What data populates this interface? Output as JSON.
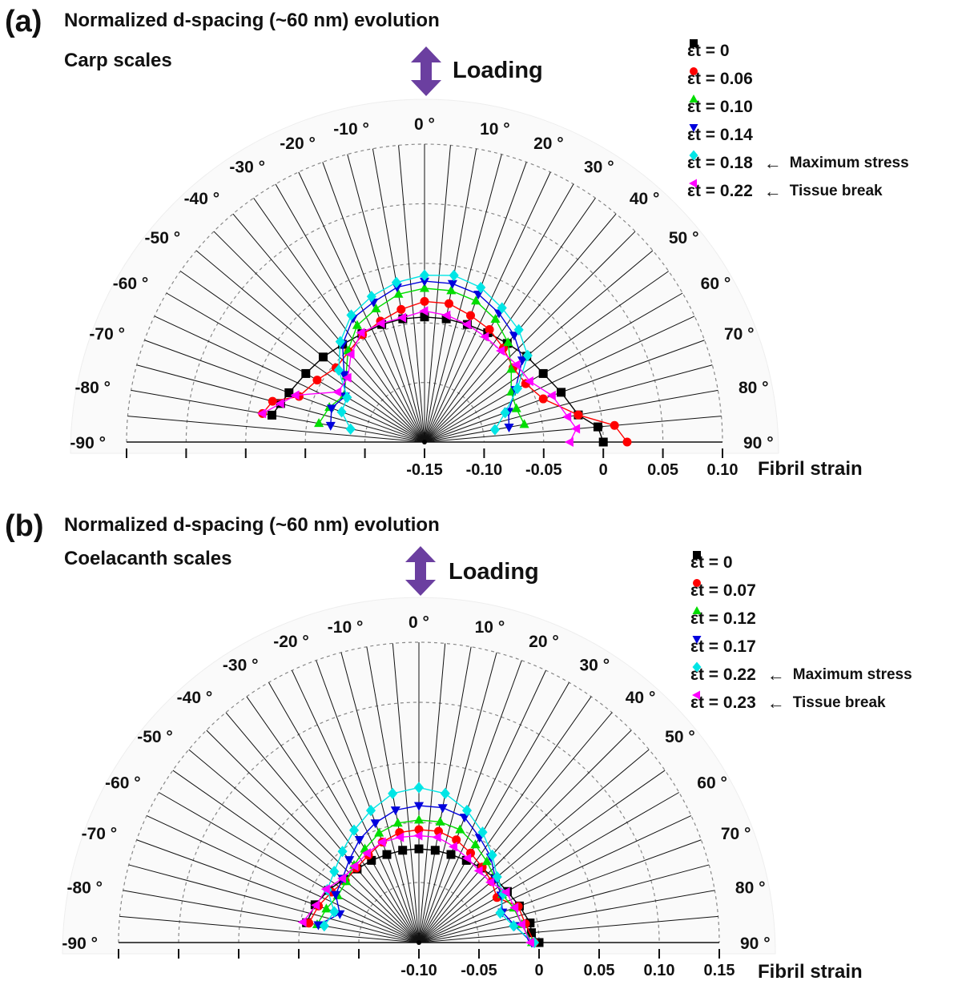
{
  "chart_data": [
    {
      "panel_label": "(a)",
      "type": "scatter",
      "title": "Normalized d-spacing (~60 nm) evolution",
      "subtitle": "Carp scales",
      "loading_label": "Loading",
      "xlabel": "Fibril strain",
      "radial_range": [
        -0.15,
        0.1
      ],
      "tick_values": [
        -0.15,
        -0.1,
        -0.05,
        0,
        0.05,
        0.1
      ],
      "tick_labels": [
        "-0.15",
        "-0.10",
        "-0.05",
        "0",
        "0.05",
        "0.10"
      ],
      "angles": [
        -90,
        -80,
        -70,
        -60,
        -50,
        -40,
        -30,
        -20,
        -10,
        0,
        10,
        20,
        30,
        40,
        50,
        60,
        70,
        80,
        90
      ],
      "angle_labels": [
        "-90 °",
        "-80 °",
        "-70 °",
        "-60 °",
        "-50 °",
        "-40 °",
        "-30 °",
        "-20 °",
        "-10 °",
        "0 °",
        "10 °",
        "20 °",
        "30 °",
        "40 °",
        "50 °",
        "60 °",
        "70 °",
        "80 °",
        "90 °"
      ],
      "legend_position": "top-right",
      "grid": true,
      "series": [
        {
          "name": "εt = 0",
          "color": "#000000",
          "marker": "square",
          "points": [
            [
              -80,
              -0.02
            ],
            [
              -75,
              -0.025
            ],
            [
              -70,
              -0.029
            ],
            [
              -60,
              -0.035
            ],
            [
              -50,
              -0.039
            ],
            [
              -40,
              -0.043
            ],
            [
              -30,
              -0.045
            ],
            [
              -20,
              -0.045
            ],
            [
              -10,
              -0.045
            ],
            [
              0,
              -0.045
            ],
            [
              10,
              -0.045
            ],
            [
              20,
              -0.045
            ],
            [
              30,
              -0.044
            ],
            [
              40,
              -0.042
            ],
            [
              50,
              -0.038
            ],
            [
              60,
              -0.035
            ],
            [
              70,
              -0.028
            ],
            [
              80,
              -0.019
            ],
            [
              85,
              -0.004
            ],
            [
              90,
              0.0
            ]
          ]
        },
        {
          "name": "εt = 0.06",
          "color": "#ff0000",
          "marker": "circle",
          "points": [
            [
              -80,
              -0.012
            ],
            [
              -75,
              -0.018
            ],
            [
              -70,
              -0.038
            ],
            [
              -60,
              -0.046
            ],
            [
              -50,
              -0.053
            ],
            [
              -40,
              -0.051
            ],
            [
              -30,
              -0.046
            ],
            [
              -20,
              -0.042
            ],
            [
              -10,
              -0.037
            ],
            [
              0,
              -0.032
            ],
            [
              10,
              -0.032
            ],
            [
              20,
              -0.037
            ],
            [
              30,
              -0.041
            ],
            [
              40,
              -0.047
            ],
            [
              50,
              -0.053
            ],
            [
              60,
              -0.052
            ],
            [
              70,
              -0.044
            ],
            [
              80,
              -0.019
            ],
            [
              85,
              0.01
            ],
            [
              90,
              0.02
            ]
          ]
        },
        {
          "name": "εt = 0.10",
          "color": "#00dd00",
          "marker": "triangle-up",
          "points": [
            [
              -80,
              -0.06
            ],
            [
              -70,
              -0.065
            ],
            [
              -60,
              -0.072
            ],
            [
              -50,
              -0.064
            ],
            [
              -40,
              -0.05
            ],
            [
              -30,
              -0.037
            ],
            [
              -20,
              -0.031
            ],
            [
              -10,
              -0.024
            ],
            [
              0,
              -0.021
            ],
            [
              10,
              -0.021
            ],
            [
              20,
              -0.024
            ],
            [
              30,
              -0.031
            ],
            [
              40,
              -0.041
            ],
            [
              50,
              -0.055
            ],
            [
              60,
              -0.066
            ],
            [
              70,
              -0.068
            ],
            [
              80,
              -0.065
            ]
          ]
        },
        {
          "name": "εt = 0.14",
          "color": "#0000dd",
          "marker": "triangle-down",
          "points": [
            [
              -80,
              -0.07
            ],
            [
              -70,
              -0.067
            ],
            [
              -60,
              -0.073
            ],
            [
              -50,
              -0.062
            ],
            [
              -40,
              -0.043
            ],
            [
              -30,
              -0.03
            ],
            [
              -20,
              -0.025
            ],
            [
              -10,
              -0.018
            ],
            [
              0,
              -0.015
            ],
            [
              10,
              -0.015
            ],
            [
              20,
              -0.018
            ],
            [
              30,
              -0.025
            ],
            [
              40,
              -0.033
            ],
            [
              50,
              -0.043
            ],
            [
              60,
              -0.062
            ],
            [
              70,
              -0.075
            ],
            [
              80,
              -0.078
            ]
          ]
        },
        {
          "name": "εt = 0.18",
          "color": "#00e5e5",
          "marker": "diamond",
          "points": [
            [
              -80,
              -0.087
            ],
            [
              -70,
              -0.076
            ],
            [
              -60,
              -0.075
            ],
            [
              -50,
              -0.056
            ],
            [
              -40,
              -0.04
            ],
            [
              -30,
              -0.027
            ],
            [
              -20,
              -0.02
            ],
            [
              -10,
              -0.014
            ],
            [
              0,
              -0.01
            ],
            [
              10,
              -0.008
            ],
            [
              20,
              -0.012
            ],
            [
              30,
              -0.02
            ],
            [
              40,
              -0.027
            ],
            [
              50,
              -0.037
            ],
            [
              60,
              -0.06
            ],
            [
              70,
              -0.078
            ],
            [
              80,
              -0.09
            ]
          ]
        },
        {
          "name": "εt = 0.22",
          "color": "#ff00ff",
          "marker": "triangle-left",
          "points": [
            [
              -80,
              -0.012
            ],
            [
              -75,
              -0.025
            ],
            [
              -70,
              -0.035
            ],
            [
              -60,
              -0.066
            ],
            [
              -50,
              -0.066
            ],
            [
              -40,
              -0.054
            ],
            [
              -30,
              -0.044
            ],
            [
              -20,
              -0.044
            ],
            [
              -10,
              -0.044
            ],
            [
              0,
              -0.04
            ],
            [
              10,
              -0.042
            ],
            [
              20,
              -0.045
            ],
            [
              30,
              -0.048
            ],
            [
              40,
              -0.05
            ],
            [
              50,
              -0.049
            ],
            [
              60,
              -0.048
            ],
            [
              70,
              -0.036
            ],
            [
              80,
              -0.028
            ],
            [
              85,
              -0.022
            ],
            [
              90,
              -0.028
            ]
          ]
        }
      ],
      "annotations": [
        {
          "series": "εt = 0.18",
          "text": "Maximum stress"
        },
        {
          "series": "εt = 0.22",
          "text": "Tissue break"
        }
      ]
    },
    {
      "panel_label": "(b)",
      "type": "scatter",
      "title": "Normalized d-spacing (~60 nm) evolution",
      "subtitle": "Coelacanth  scales",
      "loading_label": "Loading",
      "xlabel": "Fibril strain",
      "radial_range": [
        -0.1,
        0.15
      ],
      "tick_values": [
        -0.1,
        -0.05,
        0,
        0.05,
        0.1,
        0.15
      ],
      "tick_labels": [
        "-0.10",
        "-0.05",
        "0",
        "0.05",
        "0.10",
        "0.15"
      ],
      "angles": [
        -90,
        -80,
        -70,
        -60,
        -50,
        -40,
        -30,
        -20,
        -10,
        0,
        10,
        20,
        30,
        40,
        50,
        60,
        70,
        80,
        90
      ],
      "angle_labels": [
        "-90 °",
        "-80 °",
        "-70 °",
        "-60 °",
        "-50 °",
        "-40 °",
        "-30 °",
        "-20 °",
        "-10 °",
        "0 °",
        "10 °",
        "20 °",
        "30 °",
        "40 °",
        "50 °",
        "60 °",
        "70 °",
        "80 °",
        "90 °"
      ],
      "legend_position": "top-right",
      "grid": true,
      "series": [
        {
          "name": "εt = 0",
          "color": "#000000",
          "marker": "square",
          "points": [
            [
              -80,
              -0.005
            ],
            [
              -70,
              -0.008
            ],
            [
              -60,
              -0.013
            ],
            [
              -50,
              -0.018
            ],
            [
              -40,
              -0.02
            ],
            [
              -30,
              -0.021
            ],
            [
              -20,
              -0.022
            ],
            [
              -10,
              -0.022
            ],
            [
              0,
              -0.022
            ],
            [
              10,
              -0.022
            ],
            [
              20,
              -0.022
            ],
            [
              30,
              -0.021
            ],
            [
              40,
              -0.019
            ],
            [
              50,
              -0.017
            ],
            [
              60,
              -0.015
            ],
            [
              70,
              -0.011
            ],
            [
              80,
              -0.006
            ],
            [
              85,
              -0.006
            ],
            [
              90,
              0.0
            ]
          ]
        },
        {
          "name": "εt = 0.07",
          "color": "#ff0000",
          "marker": "circle",
          "points": [
            [
              -80,
              -0.007
            ],
            [
              -70,
              -0.011
            ],
            [
              -60,
              -0.016
            ],
            [
              -50,
              -0.02
            ],
            [
              -40,
              -0.019
            ],
            [
              -30,
              -0.016
            ],
            [
              -20,
              -0.011
            ],
            [
              -10,
              -0.007
            ],
            [
              0,
              -0.006
            ],
            [
              10,
              -0.006
            ],
            [
              20,
              -0.009
            ],
            [
              30,
              -0.014
            ],
            [
              40,
              -0.018
            ],
            [
              50,
              -0.021
            ],
            [
              60,
              -0.025
            ],
            [
              70,
              -0.012
            ],
            [
              80,
              -0.01
            ],
            [
              90,
              -0.004
            ]
          ]
        },
        {
          "name": "εt = 0.12",
          "color": "#00dd00",
          "marker": "triangle-up",
          "points": [
            [
              -80,
              -0.014
            ],
            [
              -70,
              -0.018
            ],
            [
              -60,
              -0.022
            ],
            [
              -50,
              -0.021
            ],
            [
              -40,
              -0.016
            ],
            [
              -30,
              -0.01
            ],
            [
              -20,
              -0.003
            ],
            [
              -10,
              0.001
            ],
            [
              0,
              0.002
            ],
            [
              10,
              0.002
            ],
            [
              20,
              0.0
            ],
            [
              30,
              -0.006
            ],
            [
              40,
              -0.012
            ],
            [
              50,
              -0.017
            ],
            [
              60,
              -0.02
            ],
            [
              70,
              -0.016
            ],
            [
              80,
              -0.013
            ],
            [
              90,
              -0.006
            ]
          ]
        },
        {
          "name": "εt = 0.17",
          "color": "#0000dd",
          "marker": "triangle-down",
          "points": [
            [
              -80,
              -0.015
            ],
            [
              -70,
              -0.03
            ],
            [
              -60,
              -0.02
            ],
            [
              -50,
              -0.017
            ],
            [
              -40,
              -0.01
            ],
            [
              -30,
              -0.001
            ],
            [
              -20,
              0.006
            ],
            [
              -10,
              0.012
            ],
            [
              0,
              0.014
            ],
            [
              10,
              0.014
            ],
            [
              20,
              0.011
            ],
            [
              30,
              0.001
            ],
            [
              40,
              -0.007
            ],
            [
              50,
              -0.017
            ],
            [
              60,
              -0.021
            ],
            [
              70,
              -0.026
            ],
            [
              80,
              -0.019
            ],
            [
              90,
              -0.006
            ]
          ]
        },
        {
          "name": "εt = 0.22",
          "color": "#00e5e5",
          "marker": "diamond",
          "points": [
            [
              -80,
              -0.02
            ],
            [
              -70,
              -0.025
            ],
            [
              -60,
              -0.012
            ],
            [
              -50,
              -0.008
            ],
            [
              -40,
              -0.001
            ],
            [
              -30,
              0.008
            ],
            [
              -20,
              0.017
            ],
            [
              -10,
              0.026
            ],
            [
              0,
              0.029
            ],
            [
              10,
              0.026
            ],
            [
              20,
              0.017
            ],
            [
              30,
              0.006
            ],
            [
              40,
              -0.005
            ],
            [
              50,
              -0.015
            ],
            [
              60,
              -0.019
            ],
            [
              70,
              -0.028
            ],
            [
              80,
              -0.02
            ],
            [
              90,
              -0.004
            ]
          ]
        },
        {
          "name": "εt = 0.23",
          "color": "#ff00ff",
          "marker": "triangle-left",
          "points": [
            [
              -80,
              -0.002
            ],
            [
              -70,
              -0.009
            ],
            [
              -60,
              -0.011
            ],
            [
              -50,
              -0.017
            ],
            [
              -40,
              -0.017
            ],
            [
              -30,
              -0.014
            ],
            [
              -20,
              -0.011
            ],
            [
              -10,
              -0.011
            ],
            [
              0,
              -0.011
            ],
            [
              10,
              -0.011
            ],
            [
              20,
              -0.015
            ],
            [
              30,
              -0.019
            ],
            [
              40,
              -0.022
            ],
            [
              50,
              -0.022
            ],
            [
              60,
              -0.016
            ],
            [
              70,
              -0.015
            ],
            [
              80,
              -0.013
            ],
            [
              90,
              -0.007
            ]
          ]
        }
      ],
      "annotations": [
        {
          "series": "εt = 0.22",
          "text": "Maximum stress"
        },
        {
          "series": "εt = 0.23",
          "text": "Tissue break"
        }
      ]
    }
  ]
}
